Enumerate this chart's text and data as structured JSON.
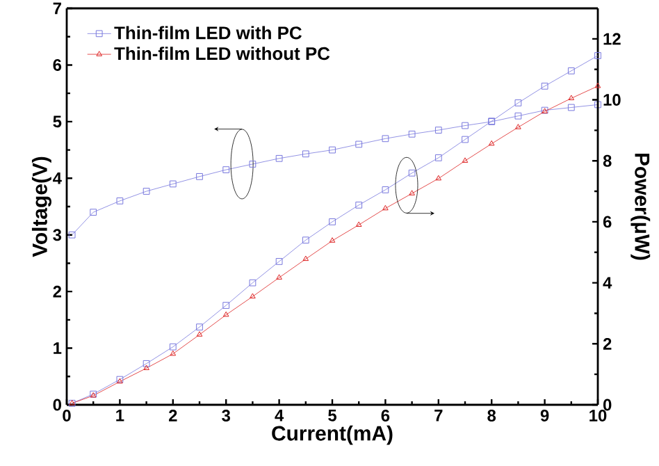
{
  "chart_data": {
    "type": "line",
    "xlabel": "Current(mA)",
    "ylabel": "Voltage(V)",
    "y2label": "Power(μW)",
    "xlim": [
      0,
      10
    ],
    "xticks": [
      0,
      1,
      2,
      3,
      4,
      5,
      6,
      7,
      8,
      9,
      10
    ],
    "ylim": [
      0,
      7
    ],
    "yticks": [
      0,
      1,
      2,
      3,
      4,
      5,
      6,
      7
    ],
    "y2lim": [
      0,
      13
    ],
    "y2ticks": [
      0,
      2,
      4,
      6,
      8,
      10,
      12
    ],
    "legend": "top left",
    "grid": false,
    "series": [
      {
        "color": "#7777dd",
        "marker": "square",
        "axis": "y",
        "x": [
          0.1,
          0.5,
          1,
          1.5,
          2,
          2.5,
          3,
          3.5,
          4,
          4.5,
          5,
          5.5,
          6,
          6.5,
          7,
          7.5,
          8,
          8.5,
          9,
          9.5,
          10
        ],
        "values": [
          3.0,
          3.4,
          3.6,
          3.77,
          3.9,
          4.03,
          4.15,
          4.25,
          4.35,
          4.43,
          4.5,
          4.6,
          4.7,
          4.78,
          4.85,
          4.93,
          5.0,
          5.1,
          5.2,
          5.25,
          5.3
        ]
      },
      {
        "name": "Thin-film LED with PC",
        "color": "#7777dd",
        "marker": "square",
        "axis": "y2",
        "x": [
          0.1,
          0.5,
          1,
          1.5,
          2,
          2.5,
          3,
          3.5,
          4,
          4.5,
          5,
          5.5,
          6,
          6.5,
          7,
          7.5,
          8,
          8.5,
          9,
          9.5,
          10
        ],
        "values": [
          0.05,
          0.35,
          0.83,
          1.35,
          1.9,
          2.55,
          3.26,
          4.0,
          4.7,
          5.4,
          6.0,
          6.55,
          7.05,
          7.6,
          8.1,
          8.7,
          9.3,
          9.9,
          10.45,
          10.95,
          11.45
        ]
      },
      {
        "name": "Thin-film LED without PC",
        "color": "#dd2222",
        "marker": "triangle",
        "axis": "y2",
        "x": [
          0.1,
          0.5,
          1,
          1.5,
          2,
          2.5,
          3,
          3.5,
          4,
          4.5,
          5,
          5.5,
          6,
          6.5,
          7,
          7.5,
          8,
          8.5,
          9,
          9.5,
          10
        ],
        "values": [
          0.05,
          0.3,
          0.76,
          1.2,
          1.67,
          2.3,
          2.95,
          3.55,
          4.17,
          4.78,
          5.38,
          5.9,
          6.44,
          6.93,
          7.42,
          8.0,
          8.56,
          9.1,
          9.62,
          10.05,
          10.45
        ]
      }
    ]
  }
}
